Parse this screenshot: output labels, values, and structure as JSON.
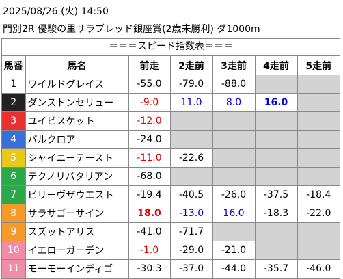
{
  "header": {
    "date": "2025/08/26 (火) 14:50",
    "race": "門別2R 優駿の里サラブレッド銀座賞(2歳未勝利) ダ1000m"
  },
  "table": {
    "title": "＝＝＝スピード指数表＝＝＝",
    "columns": [
      "馬番",
      "馬名",
      "前走",
      "2走前",
      "3走前",
      "4走前",
      "5走前"
    ],
    "empty_color": "#d3d3d3",
    "rows": [
      {
        "number": "1",
        "frame_color": "#ffffff",
        "number_color": "#000000",
        "name": "ワイルドグレイス",
        "cells": [
          {
            "text": "-55.0"
          },
          {
            "text": "-79.0"
          },
          {
            "text": "-88.0"
          },
          null,
          null
        ]
      },
      {
        "number": "2",
        "frame_color": "#222222",
        "number_color": "#ffffff",
        "name": "ダンストンセリュー",
        "cells": [
          {
            "text": "-9.0",
            "color": "#e00000"
          },
          {
            "text": "11.0",
            "color": "#0000dd"
          },
          {
            "text": "8.0",
            "color": "#0000dd"
          },
          {
            "text": "16.0",
            "color": "#0000dd",
            "bold": true
          },
          null
        ]
      },
      {
        "number": "3",
        "frame_color": "#e83030",
        "number_color": "#ffffff",
        "name": "ユイビスケット",
        "cells": [
          {
            "text": "-12.0",
            "color": "#e00000"
          },
          null,
          null,
          null,
          null
        ]
      },
      {
        "number": "4",
        "frame_color": "#3a6fd8",
        "number_color": "#ffffff",
        "name": "バルクロア",
        "cells": [
          {
            "text": "-24.0"
          },
          null,
          null,
          null,
          null
        ]
      },
      {
        "number": "5",
        "frame_color": "#e8c81a",
        "number_color": "#ffffff",
        "name": "シャイニーテースト",
        "cells": [
          {
            "text": "-11.0",
            "color": "#e00000"
          },
          {
            "text": "-22.6"
          },
          null,
          null,
          null
        ]
      },
      {
        "number": "6",
        "frame_color": "#2aa84a",
        "number_color": "#ffffff",
        "name": "テクノリバタリアン",
        "cells": [
          {
            "text": "-68.0"
          },
          null,
          null,
          null,
          null
        ]
      },
      {
        "number": "7",
        "frame_color": "#2aa84a",
        "number_color": "#ffffff",
        "name": "ビリーヴザウエスト",
        "cells": [
          {
            "text": "-19.4"
          },
          {
            "text": "-40.5"
          },
          {
            "text": "-26.0"
          },
          {
            "text": "-37.5"
          },
          {
            "text": "-18.4"
          }
        ]
      },
      {
        "number": "8",
        "frame_color": "#f39a2a",
        "number_color": "#ffffff",
        "name": "サラサゴーサイン",
        "cells": [
          {
            "text": "18.0",
            "color": "#e00000",
            "bold": true
          },
          {
            "text": "-13.0",
            "color": "#0000dd"
          },
          {
            "text": "16.0",
            "color": "#0000dd"
          },
          {
            "text": "-18.3"
          },
          {
            "text": "-22.0"
          }
        ]
      },
      {
        "number": "9",
        "frame_color": "#f39a2a",
        "number_color": "#ffffff",
        "name": "スズットアリス",
        "cells": [
          {
            "text": "-41.0"
          },
          {
            "text": "-71.7"
          },
          null,
          null,
          null
        ]
      },
      {
        "number": "10",
        "frame_color": "#f08ca8",
        "number_color": "#ffffff",
        "name": "イエローガーデン",
        "cells": [
          {
            "text": "-1.0",
            "color": "#e00000"
          },
          {
            "text": "-29.0"
          },
          {
            "text": "-21.0"
          },
          null,
          null
        ]
      },
      {
        "number": "11",
        "frame_color": "#f08ca8",
        "number_color": "#ffffff",
        "name": "モーモーインディゴ",
        "cells": [
          {
            "text": "-30.3"
          },
          {
            "text": "-37.0"
          },
          {
            "text": "-44.0"
          },
          {
            "text": "-35.7"
          },
          {
            "text": "-46.0"
          }
        ]
      }
    ]
  }
}
